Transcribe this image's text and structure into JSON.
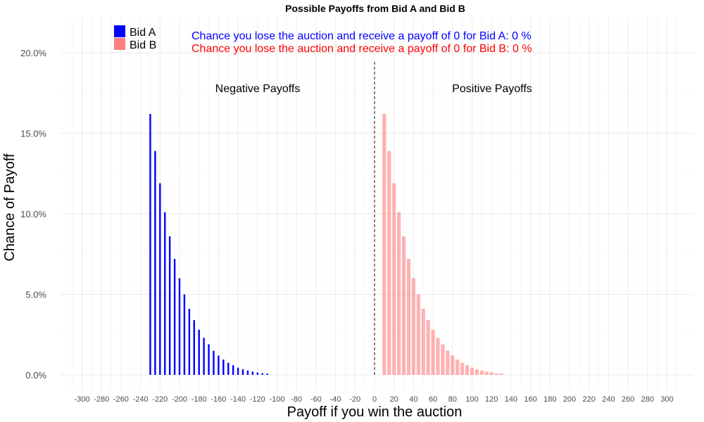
{
  "chart_data": {
    "type": "bar",
    "title": "Possible Payoffs from Bid A and Bid B",
    "xlabel": "Payoff if you win the auction",
    "ylabel": "Chance of Payoff",
    "xlim": [
      -310,
      310
    ],
    "ylim": [
      0,
      0.21
    ],
    "x_ticks": [
      "-300",
      "-280",
      "-260",
      "-240",
      "-220",
      "-200",
      "-180",
      "-160",
      "-140",
      "-120",
      "-100",
      "-80",
      "-60",
      "-40",
      "-20",
      "0",
      "20",
      "40",
      "60",
      "80",
      "100",
      "120",
      "140",
      "160",
      "180",
      "200",
      "220",
      "240",
      "260",
      "280",
      "300"
    ],
    "y_ticks": [
      "0.0%",
      "5.0%",
      "10.0%",
      "15.0%",
      "20.0%"
    ],
    "y_tick_values": [
      0,
      0.05,
      0.1,
      0.15,
      0.2
    ],
    "grid": true,
    "legend_position": "top-left",
    "vline_x": 0,
    "series": [
      {
        "name": "Bid A",
        "color": "#0000ff",
        "x": [
          -230,
          -225,
          -220,
          -215,
          -210,
          -205,
          -200,
          -195,
          -190,
          -185,
          -180,
          -175,
          -170,
          -165,
          -160,
          -155,
          -150,
          -145,
          -140,
          -135,
          -130,
          -125,
          -120,
          -115,
          -110
        ],
        "values": [
          0.162,
          0.139,
          0.119,
          0.101,
          0.086,
          0.072,
          0.06,
          0.05,
          0.041,
          0.034,
          0.028,
          0.023,
          0.019,
          0.015,
          0.012,
          0.0095,
          0.0075,
          0.006,
          0.0045,
          0.0035,
          0.0027,
          0.002,
          0.0015,
          0.001,
          0.0008
        ]
      },
      {
        "name": "Bid B",
        "color": "#ff7f7f",
        "x": [
          10,
          15,
          20,
          25,
          30,
          35,
          40,
          45,
          50,
          55,
          60,
          65,
          70,
          75,
          80,
          85,
          90,
          95,
          100,
          105,
          110,
          115,
          120,
          125,
          130
        ],
        "values": [
          0.162,
          0.139,
          0.119,
          0.101,
          0.086,
          0.072,
          0.06,
          0.05,
          0.041,
          0.034,
          0.028,
          0.023,
          0.019,
          0.015,
          0.012,
          0.0095,
          0.0075,
          0.006,
          0.0045,
          0.0035,
          0.0027,
          0.002,
          0.0015,
          0.001,
          0.0008
        ]
      }
    ],
    "annotations": {
      "bid_a_line": "Chance you lose the auction and receive a payoff of 0 for Bid A:  0 %",
      "bid_b_line": "Chance you lose the auction and receive a payoff of 0 for Bid B:  0 %",
      "bid_a_color": "#0000ff",
      "bid_b_color": "#ff0000",
      "negative_label": "Negative Payoffs",
      "positive_label": "Positive Payoffs"
    },
    "legend": [
      "Bid A",
      "Bid B"
    ]
  }
}
